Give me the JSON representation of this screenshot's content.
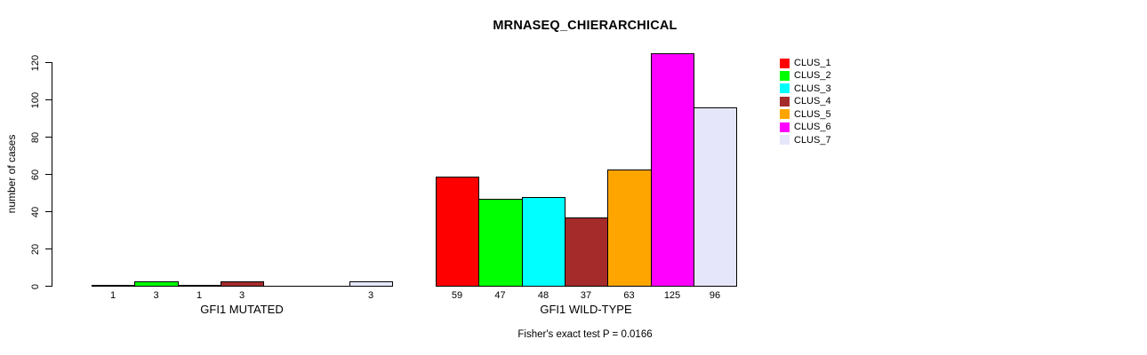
{
  "chart_data": {
    "type": "bar",
    "title": "MRNASEQ_CHIERARCHICAL",
    "ylabel": "number of cases",
    "annotation": "Fisher's exact test P = 0.0166",
    "yticks": [
      0,
      20,
      40,
      60,
      80,
      100,
      120
    ],
    "ylim": [
      0,
      125
    ],
    "grid": false,
    "legend_position": "right-outside",
    "series": [
      "CLUS_1",
      "CLUS_2",
      "CLUS_3",
      "CLUS_4",
      "CLUS_5",
      "CLUS_6",
      "CLUS_7"
    ],
    "colors": [
      "#FF0000",
      "#00FF00",
      "#00FFFF",
      "#A52A2A",
      "#FFA500",
      "#FF00FF",
      "#E6E6FA"
    ],
    "groups": [
      {
        "label": "GFI1 MUTATED",
        "values": [
          1,
          3,
          1,
          3,
          0,
          0,
          3
        ],
        "bar_labels": [
          "1",
          "3",
          "1",
          "3",
          "",
          "",
          "3"
        ]
      },
      {
        "label": "GFI1 WILD-TYPE",
        "values": [
          59,
          47,
          48,
          37,
          63,
          125,
          96
        ],
        "bar_labels": [
          "59",
          "47",
          "48",
          "37",
          "63",
          "125",
          "96"
        ]
      }
    ],
    "legend": [
      {
        "label": "CLUS_1",
        "color": "#FF0000"
      },
      {
        "label": "CLUS_2",
        "color": "#00FF00"
      },
      {
        "label": "CLUS_3",
        "color": "#00FFFF"
      },
      {
        "label": "CLUS_4",
        "color": "#A52A2A"
      },
      {
        "label": "CLUS_5",
        "color": "#FFA500"
      },
      {
        "label": "CLUS_6",
        "color": "#FF00FF"
      },
      {
        "label": "CLUS_7",
        "color": "#E6E6FA"
      }
    ]
  }
}
